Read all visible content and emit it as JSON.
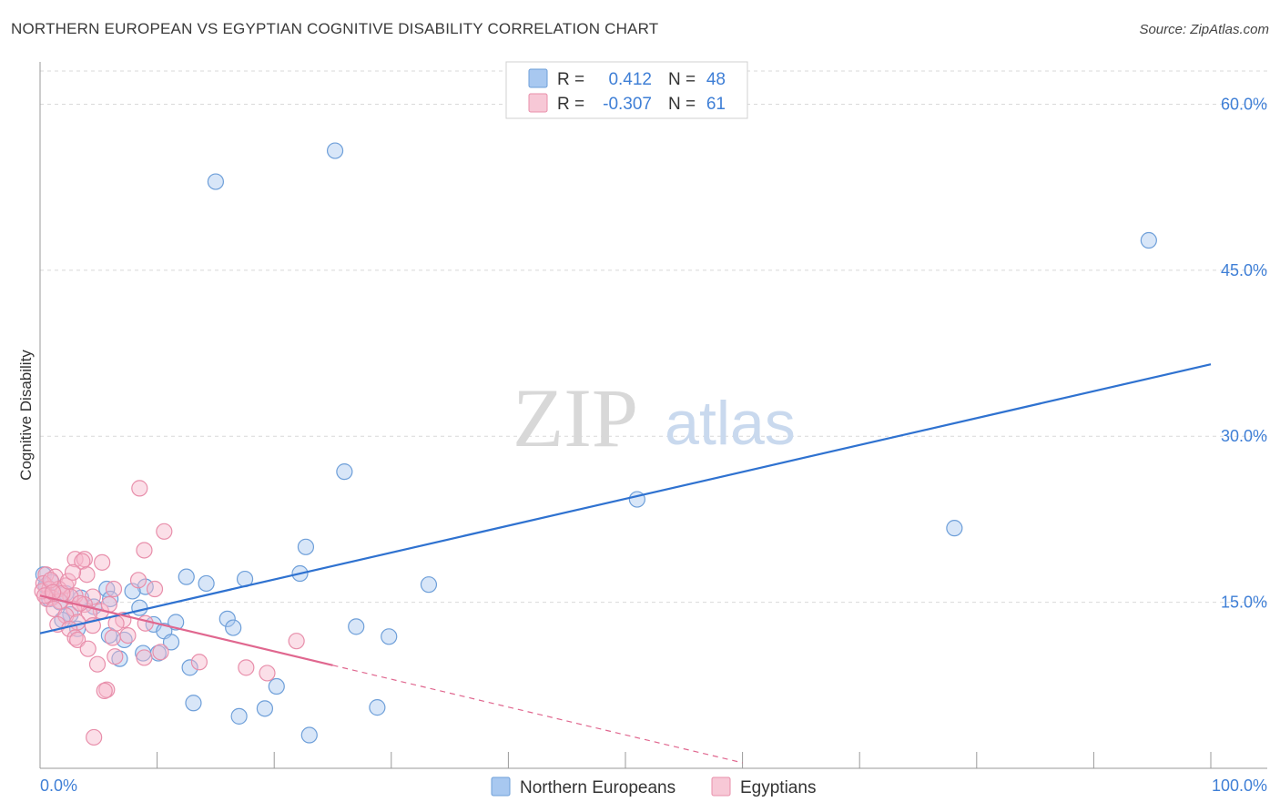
{
  "title": "NORTHERN EUROPEAN VS EGYPTIAN COGNITIVE DISABILITY CORRELATION CHART",
  "source": "Source: ZipAtlas.com",
  "colors": {
    "blue_fill": "#a8c8f0",
    "blue_stroke": "#6e9fd9",
    "blue_line": "#2f72d0",
    "pink_fill": "#f7b8cc",
    "pink_stroke": "#e88fab",
    "pink_line": "#e0678f",
    "tick_text": "#3f7fd6",
    "grid": "#d9d9d9"
  },
  "chart_data": {
    "type": "scatter",
    "title": "NORTHERN EUROPEAN VS EGYPTIAN COGNITIVE DISABILITY CORRELATION CHART",
    "xlabel": "",
    "ylabel": "Cognitive Disability",
    "xlim": [
      0,
      100
    ],
    "ylim": [
      0,
      63
    ],
    "x_tick_labels": [
      "0.0%",
      "100.0%"
    ],
    "y_ticks": [
      15,
      30,
      45,
      60
    ],
    "y_tick_labels": [
      "15.0%",
      "30.0%",
      "45.0%",
      "60.0%"
    ],
    "legend": [
      {
        "series": "Northern Europeans",
        "r_label": "R =",
        "r_value": "0.412",
        "n_label": "N =",
        "n_value": "48"
      },
      {
        "series": "Egyptians",
        "r_label": "R =",
        "r_value": "-0.307",
        "n_label": "N =",
        "n_value": "61"
      }
    ],
    "series": [
      {
        "name": "Northern Europeans",
        "color": "blue",
        "trend": {
          "x0": 0,
          "y0": 12.2,
          "x1": 100,
          "y1": 36.5,
          "dashed_from": null
        },
        "points": [
          [
            25.2,
            55.8
          ],
          [
            15.0,
            53.0
          ],
          [
            94.7,
            47.7
          ],
          [
            26.0,
            26.8
          ],
          [
            51.0,
            24.3
          ],
          [
            78.1,
            21.7
          ],
          [
            22.7,
            20.0
          ],
          [
            22.2,
            17.6
          ],
          [
            12.5,
            17.3
          ],
          [
            17.5,
            17.1
          ],
          [
            14.2,
            16.7
          ],
          [
            33.2,
            16.6
          ],
          [
            9.0,
            16.4
          ],
          [
            7.9,
            16.0
          ],
          [
            5.7,
            16.2
          ],
          [
            3.5,
            15.4
          ],
          [
            6.0,
            15.3
          ],
          [
            1.7,
            15.0
          ],
          [
            4.6,
            14.6
          ],
          [
            8.5,
            14.5
          ],
          [
            2.6,
            13.9
          ],
          [
            1.9,
            13.4
          ],
          [
            16.0,
            13.5
          ],
          [
            11.6,
            13.2
          ],
          [
            9.7,
            13.0
          ],
          [
            27.0,
            12.8
          ],
          [
            16.5,
            12.7
          ],
          [
            10.6,
            12.4
          ],
          [
            3.2,
            12.6
          ],
          [
            5.9,
            12.0
          ],
          [
            29.8,
            11.9
          ],
          [
            7.2,
            11.6
          ],
          [
            11.2,
            11.4
          ],
          [
            8.8,
            10.4
          ],
          [
            10.1,
            10.4
          ],
          [
            6.8,
            9.9
          ],
          [
            12.8,
            9.1
          ],
          [
            20.2,
            7.4
          ],
          [
            13.1,
            5.9
          ],
          [
            28.8,
            5.5
          ],
          [
            19.2,
            5.4
          ],
          [
            17.0,
            4.7
          ],
          [
            23.0,
            3.0
          ],
          [
            0.3,
            17.5
          ],
          [
            0.5,
            16.5
          ],
          [
            1.0,
            16.8
          ],
          [
            2.2,
            15.8
          ],
          [
            0.8,
            15.3
          ]
        ]
      },
      {
        "name": "Egyptians",
        "color": "pink",
        "trend": {
          "x0": 0,
          "y0": 15.6,
          "x1": 60,
          "y1": 0.5,
          "dashed_from": 25.0
        },
        "points": [
          [
            8.5,
            25.3
          ],
          [
            10.6,
            21.4
          ],
          [
            8.9,
            19.7
          ],
          [
            3.0,
            18.9
          ],
          [
            3.8,
            18.9
          ],
          [
            3.6,
            18.7
          ],
          [
            5.3,
            18.6
          ],
          [
            0.5,
            17.5
          ],
          [
            1.3,
            17.3
          ],
          [
            4.0,
            17.5
          ],
          [
            8.4,
            17.0
          ],
          [
            0.3,
            16.7
          ],
          [
            2.2,
            16.5
          ],
          [
            0.8,
            16.2
          ],
          [
            1.6,
            16.2
          ],
          [
            6.3,
            16.2
          ],
          [
            9.8,
            16.2
          ],
          [
            3.0,
            15.6
          ],
          [
            2.6,
            15.5
          ],
          [
            4.5,
            15.5
          ],
          [
            1.0,
            15.4
          ],
          [
            0.6,
            15.3
          ],
          [
            1.7,
            15.1
          ],
          [
            3.8,
            14.8
          ],
          [
            2.9,
            14.4
          ],
          [
            5.2,
            14.2
          ],
          [
            4.2,
            14.0
          ],
          [
            1.2,
            14.4
          ],
          [
            2.2,
            13.8
          ],
          [
            7.1,
            13.4
          ],
          [
            3.2,
            13.2
          ],
          [
            6.5,
            13.1
          ],
          [
            9.0,
            13.1
          ],
          [
            1.5,
            13.0
          ],
          [
            4.5,
            12.9
          ],
          [
            2.5,
            12.6
          ],
          [
            7.5,
            12.0
          ],
          [
            3.0,
            11.8
          ],
          [
            6.2,
            11.8
          ],
          [
            3.2,
            11.6
          ],
          [
            21.9,
            11.5
          ],
          [
            4.1,
            10.8
          ],
          [
            10.3,
            10.5
          ],
          [
            6.4,
            10.1
          ],
          [
            8.9,
            10.0
          ],
          [
            13.6,
            9.6
          ],
          [
            4.9,
            9.4
          ],
          [
            17.6,
            9.1
          ],
          [
            19.4,
            8.6
          ],
          [
            5.7,
            7.1
          ],
          [
            5.5,
            7.0
          ],
          [
            4.6,
            2.8
          ],
          [
            0.2,
            16.0
          ],
          [
            0.4,
            15.6
          ],
          [
            0.9,
            17.0
          ],
          [
            1.9,
            15.8
          ],
          [
            2.4,
            16.9
          ],
          [
            3.4,
            14.9
          ],
          [
            5.9,
            14.8
          ],
          [
            1.1,
            15.9
          ],
          [
            2.8,
            17.7
          ]
        ]
      }
    ]
  },
  "watermark": {
    "zip": "ZIP",
    "atlas": "atlas"
  }
}
